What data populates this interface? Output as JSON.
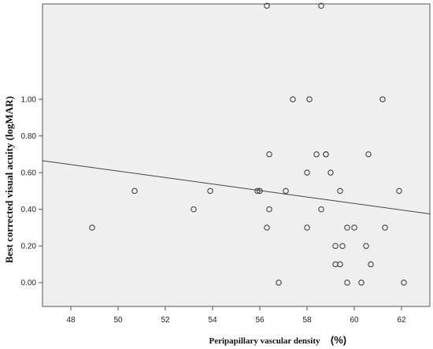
{
  "chart_data": {
    "type": "scatter",
    "title": "",
    "xlabel": "Peripapillary vascular density",
    "xunit": "(%)",
    "ylabel": "Best corrected visual acuity (logMAR)",
    "xlim": [
      46.8,
      63.2
    ],
    "ylim": [
      -0.13,
      1.52
    ],
    "x_ticks": [
      "48",
      "50",
      "52",
      "54",
      "56",
      "58",
      "60",
      "62"
    ],
    "y_ticks": [
      "0.00",
      "0.20",
      "0.40",
      "0.60",
      "0.80",
      "1.00"
    ],
    "grid": false,
    "legend": "none",
    "plot_background": "#efeff0",
    "marker_color": "#333333",
    "fit_line": {
      "x": [
        46.8,
        63.2
      ],
      "y": [
        0.665,
        0.375
      ]
    },
    "points": [
      {
        "x": 48.9,
        "y": 0.3
      },
      {
        "x": 50.7,
        "y": 0.5
      },
      {
        "x": 53.2,
        "y": 0.4
      },
      {
        "x": 53.9,
        "y": 0.5
      },
      {
        "x": 55.9,
        "y": 0.5
      },
      {
        "x": 56.0,
        "y": 0.5
      },
      {
        "x": 56.3,
        "y": 1.51
      },
      {
        "x": 56.3,
        "y": 0.3
      },
      {
        "x": 56.4,
        "y": 0.7
      },
      {
        "x": 56.4,
        "y": 0.4
      },
      {
        "x": 56.8,
        "y": 0.0
      },
      {
        "x": 57.1,
        "y": 0.5
      },
      {
        "x": 57.4,
        "y": 1.0
      },
      {
        "x": 58.0,
        "y": 0.6
      },
      {
        "x": 58.0,
        "y": 0.3
      },
      {
        "x": 58.1,
        "y": 1.0
      },
      {
        "x": 58.4,
        "y": 0.7
      },
      {
        "x": 58.6,
        "y": 1.51
      },
      {
        "x": 58.6,
        "y": 0.4
      },
      {
        "x": 58.8,
        "y": 0.7
      },
      {
        "x": 58.8,
        "y": 0.7
      },
      {
        "x": 59.0,
        "y": 0.6
      },
      {
        "x": 59.2,
        "y": 0.1
      },
      {
        "x": 59.2,
        "y": 0.2
      },
      {
        "x": 59.4,
        "y": 0.5
      },
      {
        "x": 59.4,
        "y": 0.1
      },
      {
        "x": 59.5,
        "y": 0.2
      },
      {
        "x": 59.7,
        "y": 0.3
      },
      {
        "x": 59.7,
        "y": 0.0
      },
      {
        "x": 60.0,
        "y": 0.3
      },
      {
        "x": 60.3,
        "y": 0.0
      },
      {
        "x": 60.5,
        "y": 0.2
      },
      {
        "x": 60.6,
        "y": 0.7
      },
      {
        "x": 60.7,
        "y": 0.1
      },
      {
        "x": 61.2,
        "y": 1.0
      },
      {
        "x": 61.3,
        "y": 0.3
      },
      {
        "x": 61.9,
        "y": 0.5
      },
      {
        "x": 62.1,
        "y": 0.0
      }
    ]
  }
}
